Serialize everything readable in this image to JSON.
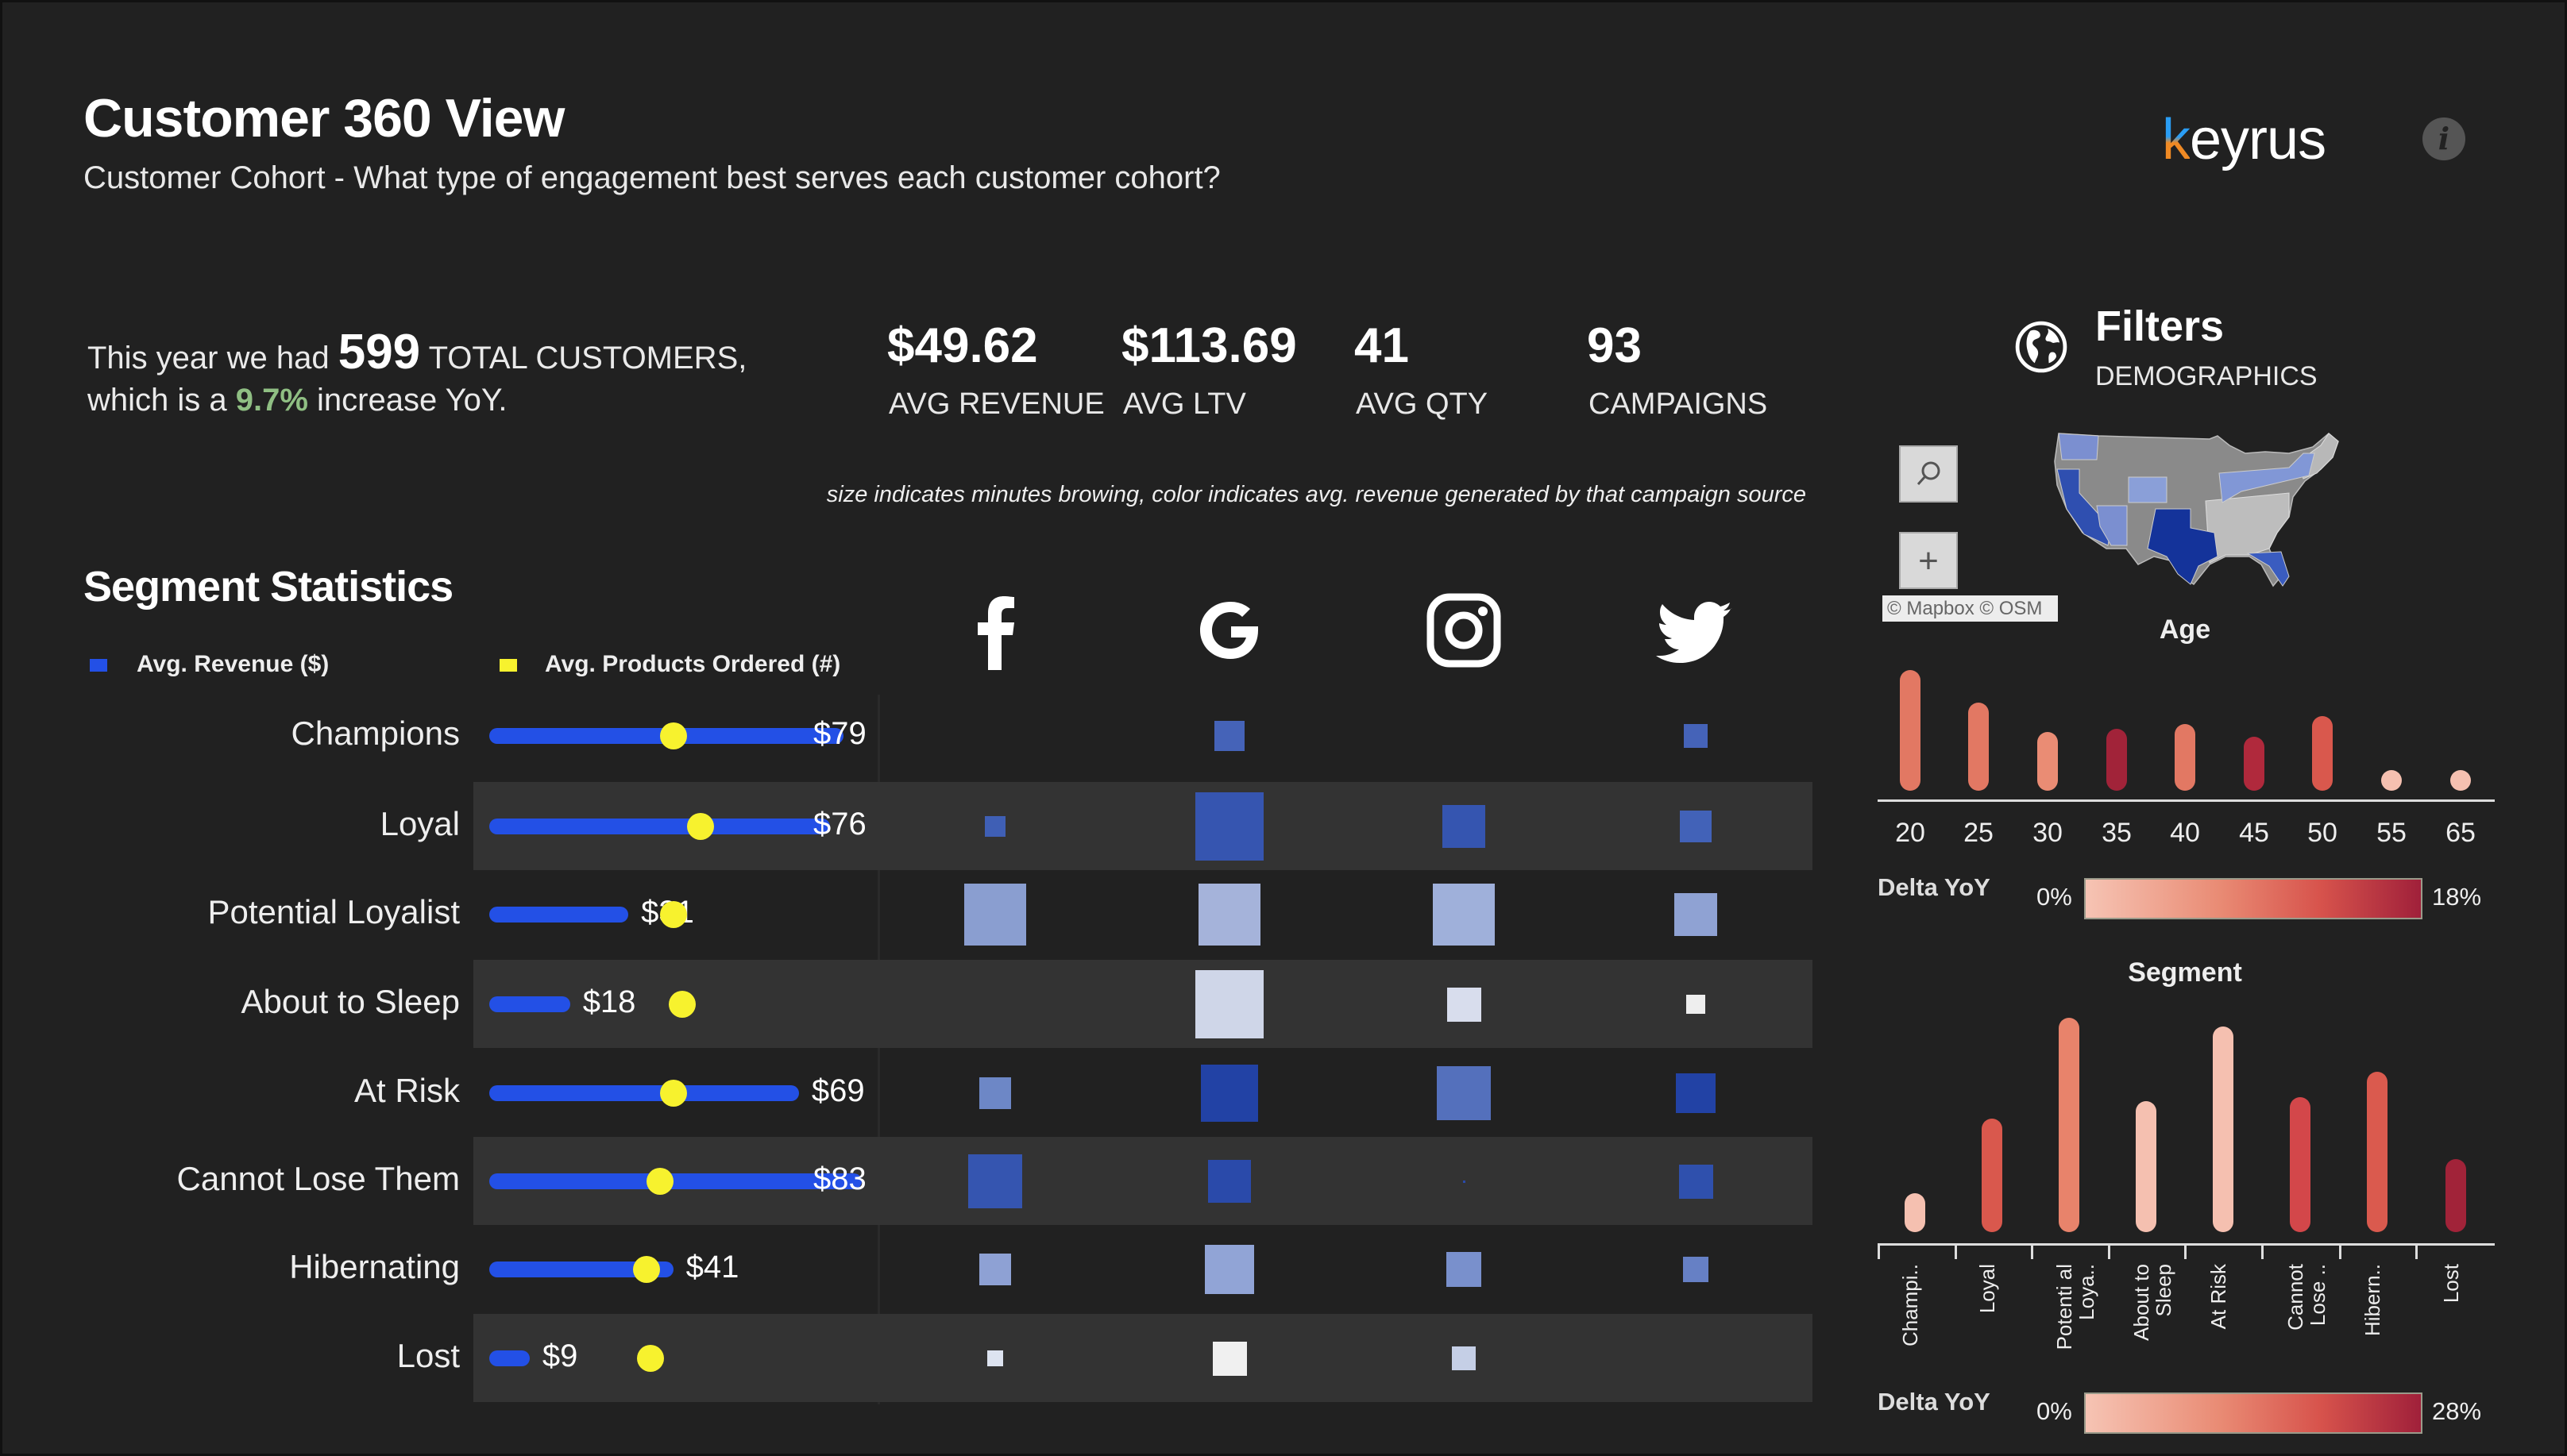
{
  "header": {
    "title": "Customer 360 View",
    "subtitle": "Customer Cohort - What type of engagement best serves each customer cohort?",
    "logo_text": "keyrus",
    "info_icon": "info-icon"
  },
  "summary": {
    "prefix": "This year we had",
    "total_customers": "599",
    "total_label": "TOTAL CUSTOMERS,",
    "line2_prefix": "which is a",
    "yoy_pct": "9.7%",
    "line2_suffix": "increase YoY.",
    "accent_color": "#8fbf83"
  },
  "kpis": [
    {
      "value": "$49.62",
      "label": "AVG REVENUE"
    },
    {
      "value": "$113.69",
      "label": "AVG LTV"
    },
    {
      "value": "41",
      "label": "AVG QTY"
    },
    {
      "value": "93",
      "label": "CAMPAIGNS"
    }
  ],
  "note": "size indicates minutes browing, color indicates avg. revenue generated by that campaign source",
  "segment_stats": {
    "title": "Segment Statistics",
    "legend": [
      {
        "label": "Avg. Revenue ($)",
        "color": "#2350e6"
      },
      {
        "label": "Avg. Products Ordered (#)",
        "color": "#f7f22e"
      }
    ],
    "channels": [
      "facebook-icon",
      "google-icon",
      "instagram-icon",
      "twitter-icon"
    ],
    "rows": [
      {
        "segment": "Champions",
        "revenue": 79,
        "revenue_label": "$79",
        "products": 41,
        "cells": [
          null,
          {
            "size": 0.44,
            "color": "#4563b8"
          },
          null,
          {
            "size": 0.34,
            "color": "#4563b8"
          }
        ]
      },
      {
        "segment": "Loyal",
        "revenue": 76,
        "revenue_label": "$76",
        "products": 47,
        "cells": [
          {
            "size": 0.31,
            "color": "#3f5fb5"
          },
          {
            "size": 1.0,
            "color": "#3655b0"
          },
          {
            "size": 0.63,
            "color": "#3555b0"
          },
          {
            "size": 0.47,
            "color": "#4262b8"
          }
        ]
      },
      {
        "segment": "Potential Loyalist",
        "revenue": 31,
        "revenue_label": "$31",
        "products": 41,
        "cells": [
          {
            "size": 0.9,
            "color": "#8a9ed0"
          },
          {
            "size": 0.9,
            "color": "#a5b3da"
          },
          {
            "size": 0.91,
            "color": "#9fb0da"
          },
          {
            "size": 0.63,
            "color": "#8fa2d3"
          }
        ]
      },
      {
        "segment": "About to Sleep",
        "revenue": 18,
        "revenue_label": "$18",
        "products": 43,
        "cells": [
          null,
          {
            "size": 1.0,
            "color": "#cfd6e8"
          },
          {
            "size": 0.5,
            "color": "#d8dded"
          },
          {
            "size": 0.28,
            "color": "#eeeeee"
          }
        ]
      },
      {
        "segment": "At Risk",
        "revenue": 69,
        "revenue_label": "$69",
        "products": 41,
        "cells": [
          {
            "size": 0.47,
            "color": "#6d87c6"
          },
          {
            "size": 0.84,
            "color": "#2242a5"
          },
          {
            "size": 0.78,
            "color": "#5470bc"
          },
          {
            "size": 0.59,
            "color": "#2242a5"
          }
        ]
      },
      {
        "segment": "Cannot Lose Them",
        "revenue": 83,
        "revenue_label": "$83",
        "products": 38,
        "cells": [
          {
            "size": 0.78,
            "color": "#3555b0"
          },
          {
            "size": 0.63,
            "color": "#2a4aaa"
          },
          {
            "size": 0.03,
            "color": "#2a4aaa"
          },
          {
            "size": 0.5,
            "color": "#2f50ad"
          }
        ]
      },
      {
        "segment": "Hibernating",
        "revenue": 41,
        "revenue_label": "$41",
        "products": 35,
        "cells": [
          {
            "size": 0.47,
            "color": "#8ea1d4"
          },
          {
            "size": 0.72,
            "color": "#91a4d6"
          },
          {
            "size": 0.52,
            "color": "#7990cc"
          },
          {
            "size": 0.37,
            "color": "#6680c5"
          }
        ]
      },
      {
        "segment": "Lost",
        "revenue": 9,
        "revenue_label": "$9",
        "products": 36,
        "cells": [
          {
            "size": 0.24,
            "color": "#dde3f0"
          },
          {
            "size": 0.5,
            "color": "#f0f0f0"
          },
          {
            "size": 0.34,
            "color": "#c5cfe6"
          },
          null
        ]
      }
    ]
  },
  "filters": {
    "title": "Filters",
    "subtitle": "DEMOGRAPHICS",
    "globe_icon": "globe-icon",
    "map": {
      "attribution": "© Mapbox  © OSM",
      "search_icon": "search-icon",
      "zoom_in": "+"
    }
  },
  "chart_data": [
    {
      "type": "bar",
      "title": "Age",
      "categories": [
        "20",
        "25",
        "30",
        "35",
        "40",
        "45",
        "50",
        "55",
        "65"
      ],
      "values": [
        100,
        73,
        49,
        51,
        55,
        45,
        62,
        2,
        2
      ],
      "delta_yoy_pct": [
        8,
        8,
        6,
        17,
        8,
        16,
        11,
        1,
        1
      ],
      "colors": [
        "#e27863",
        "#e27863",
        "#ea8c74",
        "#a12339",
        "#e27863",
        "#b0293c",
        "#d9584d",
        "#f5c0b0",
        "#f5c0b0"
      ],
      "color_legend": {
        "label": "Delta YoY",
        "min": "0%",
        "max": "18%"
      }
    },
    {
      "type": "bar",
      "title": "Segment",
      "categories": [
        "Champi..",
        "Loyal",
        "Potenti al Loya..",
        "About to Sleep",
        "At Risk",
        "Cannot Lose ..",
        "Hibern..",
        "Lost"
      ],
      "values": [
        18,
        53,
        100,
        61,
        96,
        63,
        75,
        34
      ],
      "colors": [
        "#f5c0b0",
        "#d9584d",
        "#e8836b",
        "#f5c0b0",
        "#f5c0b0",
        "#d3474a",
        "#da5a4e",
        "#a12339"
      ],
      "color_legend": {
        "label": "Delta YoY",
        "min": "0%",
        "max": "28%"
      }
    }
  ]
}
